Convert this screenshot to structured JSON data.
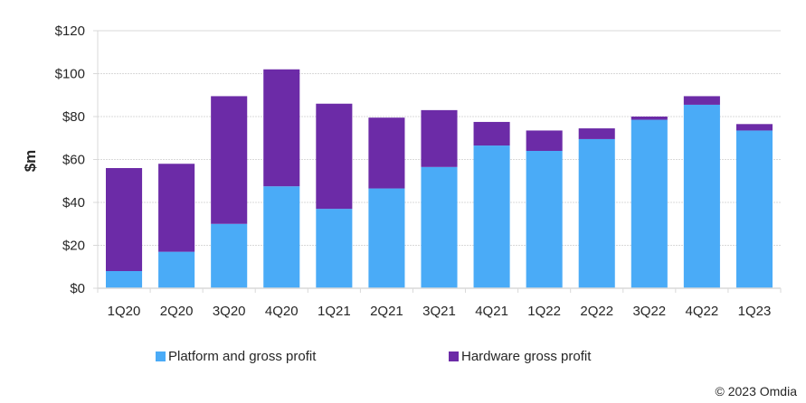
{
  "chart_data": {
    "type": "bar",
    "stacked": true,
    "title": "",
    "xlabel": "",
    "ylabel": "$m",
    "ylim": [
      0,
      120
    ],
    "yticks": [
      0,
      20,
      40,
      60,
      80,
      100,
      120
    ],
    "ytick_labels": [
      "$0",
      "$20",
      "$40",
      "$60",
      "$80",
      "$100",
      "$120"
    ],
    "grid": true,
    "legend_position": "bottom",
    "categories": [
      "1Q20",
      "2Q20",
      "3Q20",
      "4Q20",
      "1Q21",
      "2Q21",
      "3Q21",
      "4Q21",
      "1Q22",
      "2Q22",
      "3Q22",
      "4Q22",
      "1Q23"
    ],
    "series": [
      {
        "name": "Platform and gross profit",
        "color": "#4aabf7",
        "values": [
          8,
          17,
          30,
          47.5,
          37,
          46.5,
          56.5,
          66.5,
          64,
          69.5,
          78.5,
          85.5,
          73.5
        ]
      },
      {
        "name": "Hardware gross profit",
        "color": "#6c2ba7",
        "values": [
          48,
          41,
          59.5,
          54.5,
          49,
          33,
          26.5,
          11,
          9.5,
          5,
          1.5,
          4,
          3
        ]
      }
    ]
  },
  "legend": {
    "items": [
      {
        "label": "Platform and gross profit",
        "color": "#4aabf7"
      },
      {
        "label": "Hardware gross profit",
        "color": "#6c2ba7"
      }
    ]
  },
  "footer": {
    "copyright": "© 2023 Omdia"
  }
}
